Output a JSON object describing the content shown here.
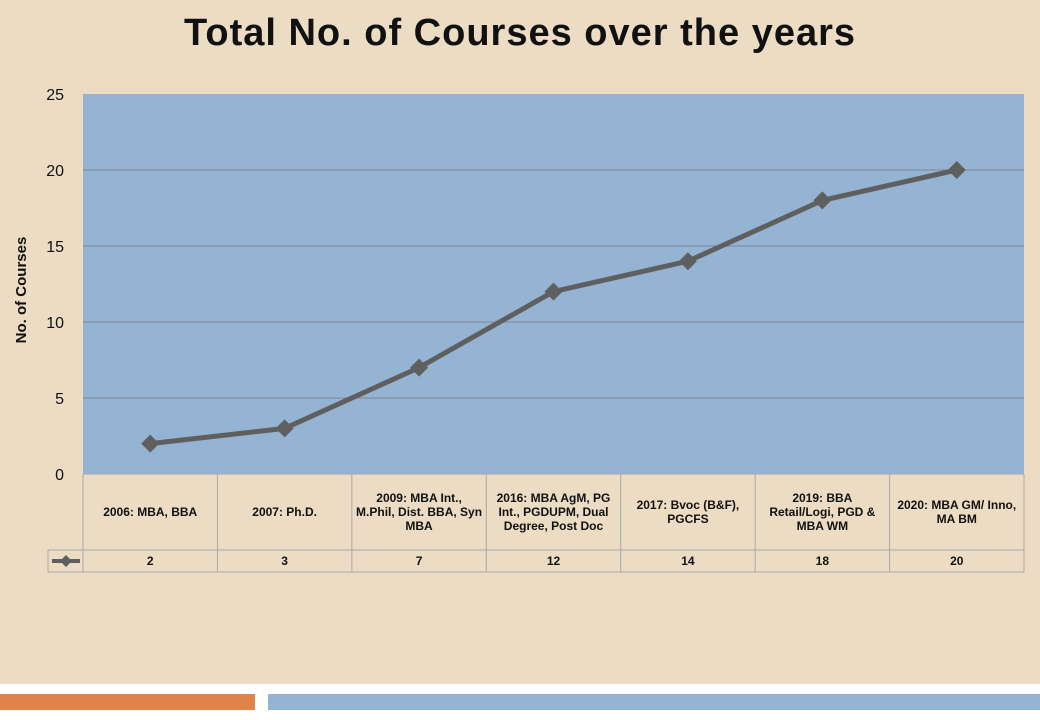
{
  "chart_data": {
    "type": "line",
    "title": "Total No. of Courses over the years",
    "xlabel": "",
    "ylabel": "No. of Courses",
    "ylim": [
      0,
      25
    ],
    "yticks": [
      0,
      5,
      10,
      15,
      20,
      25
    ],
    "grid": true,
    "legend": "none",
    "categories": [
      "2006: MBA, BBA",
      "2007: Ph.D.",
      "2009: MBA Int., M.Phil, Dist. BBA, Syn MBA",
      "2016: MBA AgM, PG Int., PGDUPM, Dual Degree, Post Doc",
      "2017: Bvoc (B&F), PGCFS",
      "2019: BBA Retail/Logi, PGD & MBA WM",
      "2020: MBA GM/ Inno, MA BM"
    ],
    "series": [
      {
        "values": [
          2,
          3,
          7,
          12,
          14,
          18,
          20
        ]
      }
    ],
    "data_table": true
  },
  "colors": {
    "background": "#ebdcc3",
    "plot_area": "#95b3d2",
    "line": "#5f5f5f",
    "gridline": "#7d8a96",
    "accent_orange": "#e0844b",
    "accent_blue": "#95b3d2"
  }
}
